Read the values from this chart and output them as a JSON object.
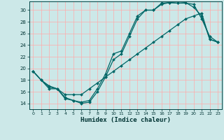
{
  "xlabel": "Humidex (Indice chaleur)",
  "bg_color": "#cce8e8",
  "grid_color": "#ffaaaa",
  "line_color": "#006666",
  "xlim": [
    -0.5,
    23.5
  ],
  "ylim": [
    13.0,
    31.5
  ],
  "yticks": [
    14,
    16,
    18,
    20,
    22,
    24,
    26,
    28,
    30
  ],
  "xticks": [
    0,
    1,
    2,
    3,
    4,
    5,
    6,
    7,
    8,
    9,
    10,
    11,
    12,
    13,
    14,
    15,
    16,
    17,
    18,
    19,
    20,
    21,
    22,
    23
  ],
  "line1_x": [
    0,
    1,
    2,
    3,
    4,
    5,
    6,
    7,
    8,
    9,
    10,
    11,
    12,
    13,
    14,
    15,
    16,
    17,
    18,
    19,
    20,
    21,
    22,
    23
  ],
  "line1_y": [
    19.5,
    18.0,
    17.0,
    16.5,
    15.0,
    14.5,
    14.2,
    14.5,
    16.5,
    19.0,
    22.5,
    23.0,
    26.0,
    29.0,
    30.0,
    30.0,
    31.2,
    31.3,
    31.2,
    31.2,
    31.0,
    28.5,
    25.5,
    24.5
  ],
  "line2_x": [
    0,
    1,
    2,
    3,
    4,
    5,
    6,
    7,
    8,
    9,
    10,
    11,
    12,
    13,
    14,
    15,
    16,
    17,
    18,
    19,
    20,
    21,
    22,
    23
  ],
  "line2_y": [
    19.5,
    18.0,
    16.8,
    16.5,
    14.8,
    14.5,
    14.0,
    14.2,
    16.0,
    18.5,
    21.5,
    22.5,
    25.5,
    28.5,
    30.0,
    30.0,
    31.0,
    31.3,
    31.2,
    31.3,
    30.5,
    29.0,
    25.0,
    24.5
  ],
  "line3_x": [
    0,
    1,
    2,
    3,
    4,
    5,
    6,
    7,
    8,
    9,
    10,
    11,
    12,
    13,
    14,
    15,
    16,
    17,
    18,
    19,
    20,
    21,
    22,
    23
  ],
  "line3_y": [
    19.5,
    18.0,
    16.5,
    16.5,
    15.5,
    15.5,
    15.5,
    16.5,
    17.5,
    18.5,
    19.5,
    20.5,
    21.5,
    22.5,
    23.5,
    24.5,
    25.5,
    26.5,
    27.5,
    28.5,
    29.0,
    29.5,
    25.0,
    24.5
  ]
}
